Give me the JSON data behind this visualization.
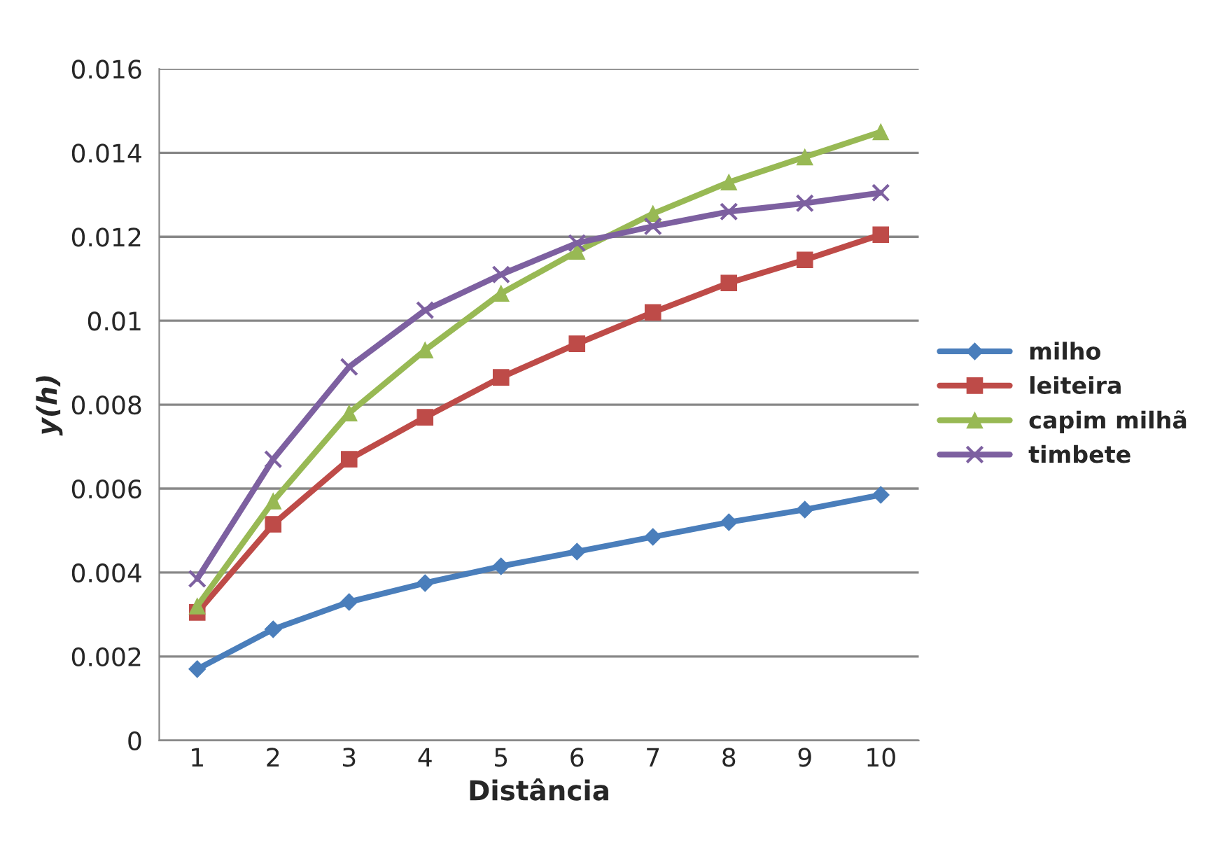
{
  "chart_data": {
    "type": "line",
    "xlabel": "Distância",
    "ylabel": "y(h)",
    "categories": [
      "1",
      "2",
      "3",
      "4",
      "5",
      "6",
      "7",
      "8",
      "9",
      "10"
    ],
    "series": [
      {
        "name": "milho",
        "color": "#4a7ebb",
        "marker": "diamond",
        "values": [
          0.0017,
          0.00265,
          0.0033,
          0.00375,
          0.00415,
          0.0045,
          0.00485,
          0.0052,
          0.0055,
          0.00585
        ]
      },
      {
        "name": "leiteira",
        "color": "#be4b48",
        "marker": "square",
        "values": [
          0.00305,
          0.00515,
          0.0067,
          0.0077,
          0.00865,
          0.00945,
          0.0102,
          0.0109,
          0.01145,
          0.01205
        ]
      },
      {
        "name": "capim milhã",
        "color": "#98b954",
        "marker": "triangle",
        "values": [
          0.0032,
          0.0057,
          0.0078,
          0.0093,
          0.01065,
          0.01165,
          0.01255,
          0.0133,
          0.0139,
          0.0145
        ]
      },
      {
        "name": "timbete",
        "color": "#7d60a0",
        "marker": "cross",
        "values": [
          0.00385,
          0.0067,
          0.0089,
          0.01025,
          0.0111,
          0.01185,
          0.01225,
          0.0126,
          0.0128,
          0.01305
        ]
      }
    ],
    "ylim": [
      0,
      0.016
    ],
    "yticks": [
      0,
      0.002,
      0.004,
      0.006,
      0.008,
      0.01,
      0.012,
      0.014,
      0.016
    ],
    "grid": "y",
    "legend": "right",
    "line_style": "solid"
  }
}
